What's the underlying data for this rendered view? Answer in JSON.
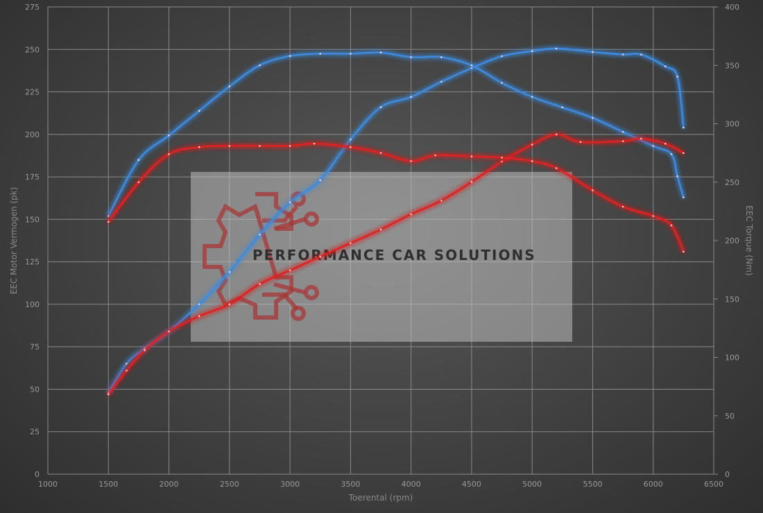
{
  "chart_data": {
    "type": "line",
    "title": "",
    "xlabel": "Toerental (rpm)",
    "ylabel_left": "EEC Motor Vermogen (pk)",
    "ylabel_right": "EEC Torque (Nm)",
    "xlim": [
      1000,
      6500
    ],
    "ylim_left": [
      0,
      275
    ],
    "ylim_right": [
      0,
      400
    ],
    "x_ticks": [
      1000,
      1500,
      2000,
      2500,
      3000,
      3500,
      4000,
      4500,
      5000,
      5500,
      6000,
      6500
    ],
    "y_ticks_left": [
      0,
      25,
      50,
      75,
      100,
      125,
      150,
      175,
      200,
      225,
      250,
      275
    ],
    "y_ticks_right": [
      0,
      50,
      100,
      150,
      200,
      250,
      300,
      350,
      400
    ],
    "grid": true,
    "legend": "none",
    "watermark": "PERFORMANCE CAR SOLUTIONS",
    "series": [
      {
        "axis": "left",
        "color": "#3d8be0",
        "x": [
          1500,
          1650,
          1800,
          2000,
          2250,
          2500,
          2750,
          3000,
          3250,
          3500,
          3750,
          4000,
          4250,
          4500,
          4750,
          5000,
          5200,
          5500,
          5750,
          5900,
          6100,
          6200,
          6250
        ],
        "y": [
          48,
          65,
          74,
          84,
          100,
          119,
          141,
          160,
          173,
          197,
          216,
          222,
          231,
          239,
          246,
          249,
          250.5,
          248.5,
          247,
          247,
          240,
          234,
          204
        ]
      },
      {
        "axis": "right",
        "color": "#3d8be0",
        "x": [
          1500,
          1750,
          2000,
          2250,
          2500,
          2750,
          3000,
          3250,
          3500,
          3750,
          4000,
          4250,
          4500,
          4750,
          5000,
          5250,
          5500,
          5750,
          6000,
          6150,
          6200,
          6250
        ],
        "y": [
          221,
          269,
          290,
          311,
          332,
          350,
          358,
          360,
          360,
          361,
          357,
          357,
          350,
          335,
          323,
          314,
          305,
          293,
          281,
          274,
          255,
          237
        ]
      },
      {
        "axis": "left",
        "color": "#e02020",
        "x": [
          1500,
          1650,
          1800,
          2000,
          2250,
          2500,
          2750,
          3000,
          3250,
          3500,
          3750,
          4000,
          4250,
          4500,
          4750,
          5000,
          5200,
          5400,
          5750,
          5900,
          6100,
          6250
        ],
        "y": [
          47,
          61,
          73,
          84,
          93,
          100,
          112,
          120,
          128,
          136,
          144,
          153,
          161,
          172,
          184,
          194,
          200,
          195.5,
          196,
          197.5,
          194.5,
          189
        ]
      },
      {
        "axis": "right",
        "color": "#e02020",
        "x": [
          1500,
          1750,
          2000,
          2250,
          2500,
          2750,
          3000,
          3200,
          3500,
          3750,
          4000,
          4200,
          4500,
          4750,
          5000,
          5200,
          5500,
          5750,
          6000,
          6150,
          6250
        ],
        "y": [
          216,
          250,
          274,
          280,
          281,
          281,
          281,
          283,
          280,
          275,
          268,
          273,
          272,
          271,
          268,
          262,
          243,
          229,
          221,
          213,
          190.5
        ]
      }
    ]
  }
}
